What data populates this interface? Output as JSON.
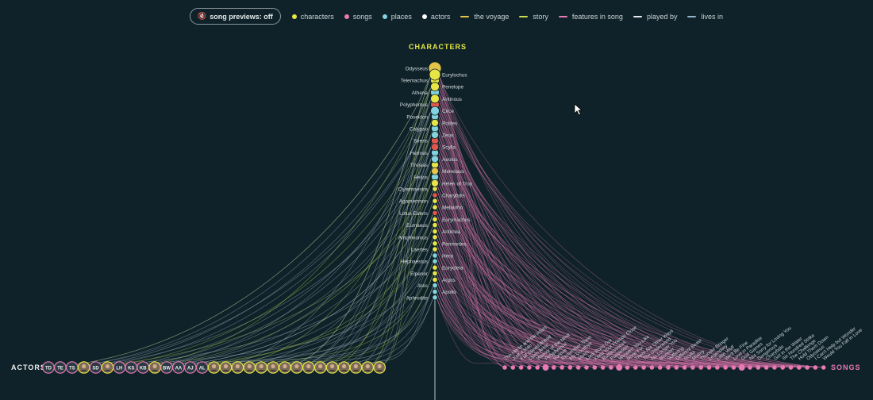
{
  "legend": {
    "toggle_label": "song previews: off",
    "items": [
      {
        "label": "characters",
        "kind": "dot",
        "color": "#e7e545"
      },
      {
        "label": "songs",
        "kind": "dot",
        "color": "#e879b4"
      },
      {
        "label": "places",
        "kind": "dot",
        "color": "#83d3df"
      },
      {
        "label": "actors",
        "kind": "dot",
        "color": "#ffffff"
      },
      {
        "label": "the voyage",
        "kind": "bar",
        "color": "#e5c44a"
      },
      {
        "label": "story",
        "kind": "bar",
        "color": "#c9dd4a"
      },
      {
        "label": "features in song",
        "kind": "bar",
        "color": "#e879b4"
      },
      {
        "label": "played by",
        "kind": "bar",
        "color": "#e6eaec"
      },
      {
        "label": "lives in",
        "kind": "bar",
        "color": "#8fb6c7"
      }
    ]
  },
  "characters_title": "CHARACTERS",
  "actors_title": "ACTORS",
  "songs_title": "SONGS",
  "colors": {
    "character": "#e7e545",
    "song": "#e879b4",
    "place": "#83d3df",
    "voyage": "#e5c44a",
    "monster": "#e2574c",
    "actor_link": "#9fb0b8",
    "story_link": "#b9cf55"
  },
  "left_nodes": [
    {
      "name": "Odysseus",
      "kind": "voyage"
    },
    {
      "name": "Telemachus",
      "kind": "character"
    },
    {
      "name": "Athena",
      "kind": "place"
    },
    {
      "name": "Polyphemus",
      "kind": "monster"
    },
    {
      "name": "Poseidon",
      "kind": "place"
    },
    {
      "name": "Calypso",
      "kind": "place"
    },
    {
      "name": "Sirens",
      "kind": "monster"
    },
    {
      "name": "Hermes",
      "kind": "place"
    },
    {
      "name": "Tiresias",
      "kind": "character"
    },
    {
      "name": "Helios",
      "kind": "place"
    },
    {
      "name": "Clytemnestra",
      "kind": "character"
    },
    {
      "name": "Agamemnon",
      "kind": "character"
    },
    {
      "name": "Lotus Eaters",
      "kind": "monster"
    },
    {
      "name": "Eumaeus",
      "kind": "character"
    },
    {
      "name": "Amphinomus",
      "kind": "character"
    },
    {
      "name": "Laertes",
      "kind": "character"
    },
    {
      "name": "Hephaestus",
      "kind": "place"
    },
    {
      "name": "Elpenor",
      "kind": "character"
    },
    {
      "name": "Ares",
      "kind": "place"
    },
    {
      "name": "Aphrodite",
      "kind": "place"
    }
  ],
  "right_nodes": [
    {
      "name": "Eurylochus",
      "kind": "character"
    },
    {
      "name": "Penelope",
      "kind": "character"
    },
    {
      "name": "Antinous",
      "kind": "character"
    },
    {
      "name": "Circe",
      "kind": "place"
    },
    {
      "name": "Polites",
      "kind": "character"
    },
    {
      "name": "Zeus",
      "kind": "place"
    },
    {
      "name": "Scylla",
      "kind": "monster"
    },
    {
      "name": "Aeolus",
      "kind": "place"
    },
    {
      "name": "Menelaus",
      "kind": "voyage"
    },
    {
      "name": "Helen of Troy",
      "kind": "character"
    },
    {
      "name": "Charybdis",
      "kind": "monster"
    },
    {
      "name": "Melantho",
      "kind": "character"
    },
    {
      "name": "Eurymachus",
      "kind": "character"
    },
    {
      "name": "Anticlea",
      "kind": "character"
    },
    {
      "name": "Perimedes",
      "kind": "character"
    },
    {
      "name": "Hera",
      "kind": "place"
    },
    {
      "name": "Eurycleia",
      "kind": "character"
    },
    {
      "name": "Argos",
      "kind": "character"
    },
    {
      "name": "Apollo",
      "kind": "place"
    }
  ],
  "actors": [
    {
      "initials": "TD",
      "photo": false
    },
    {
      "initials": "TE",
      "photo": false
    },
    {
      "initials": "TS",
      "photo": false
    },
    {
      "initials": "",
      "photo": true
    },
    {
      "initials": "SD",
      "photo": false
    },
    {
      "initials": "",
      "photo": true
    },
    {
      "initials": "LH",
      "photo": false
    },
    {
      "initials": "KS",
      "photo": false
    },
    {
      "initials": "KB",
      "photo": false
    },
    {
      "initials": "",
      "photo": true
    },
    {
      "initials": "BW",
      "photo": false
    },
    {
      "initials": "AA",
      "photo": false
    },
    {
      "initials": "AJ",
      "photo": false
    },
    {
      "initials": "AL",
      "photo": false
    },
    {
      "initials": "",
      "photo": true
    },
    {
      "initials": "",
      "photo": true
    },
    {
      "initials": "",
      "photo": true
    },
    {
      "initials": "",
      "photo": true
    },
    {
      "initials": "",
      "photo": true
    },
    {
      "initials": "",
      "photo": true
    },
    {
      "initials": "",
      "photo": true
    },
    {
      "initials": "",
      "photo": true
    },
    {
      "initials": "",
      "photo": true
    },
    {
      "initials": "",
      "photo": true
    },
    {
      "initials": "",
      "photo": true
    },
    {
      "initials": "",
      "photo": true
    },
    {
      "initials": "",
      "photo": true
    },
    {
      "initials": "",
      "photo": true
    },
    {
      "initials": "",
      "photo": true
    }
  ],
  "songs": [
    "The Horse and the Infant",
    "Just a Man",
    "Full Speed Ahead",
    "Open Arms",
    "Warrior of the Mind",
    "Polyphemus",
    "Survive",
    "Remember Them",
    "My Goodbye",
    "Storm",
    "Luck Runs Out",
    "Keep Your Friends Close",
    "Ruthlessness",
    "Puppeteer",
    "Wouldn't You Like",
    "Done For",
    "There Are Other Ways",
    "The Underworld",
    "No Longer You",
    "Monster",
    "Suffering",
    "Different Beast",
    "Scylla",
    "Mutiny",
    "Thunder Bringer",
    "Legendary",
    "Little Wolf",
    "We'll Be Fine",
    "Love in Paradise",
    "God Games",
    "Not Sorry for Loving You",
    "Dangerous",
    "Charybdis",
    "Get in the Water",
    "Six Hundred Strike",
    "The Challenge",
    "Hold Them Down",
    "Odysseus",
    "I Can't Help but Wonder",
    "Would You Fall in Love"
  ]
}
